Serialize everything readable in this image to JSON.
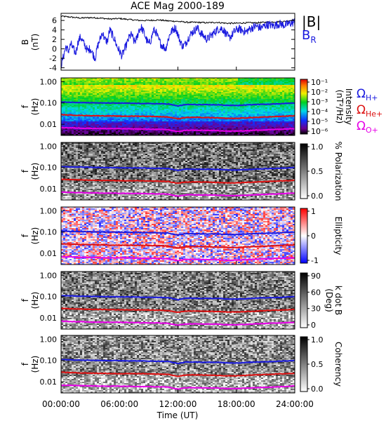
{
  "title": "ACE Mag 2000-189",
  "chart_data": [
    {
      "type": "line",
      "panel": "field",
      "ylabel": "B",
      "yunit": "(nT)",
      "ylim": [
        -4.5,
        7.5
      ],
      "yticks": [
        "6",
        "4",
        "2",
        "0",
        "-2",
        "-4"
      ],
      "ytick_values": [
        6,
        4,
        2,
        0,
        -2,
        -4
      ],
      "series": [
        {
          "name": "|B|",
          "color": "#000000",
          "x_hours": [
            0,
            1,
            2,
            3,
            4,
            5,
            6,
            7,
            8,
            9,
            10,
            11,
            12,
            13,
            14,
            15,
            16,
            17,
            18,
            19,
            20,
            21,
            22,
            23,
            24
          ],
          "values": [
            6.9,
            6.7,
            6.5,
            6.6,
            6.5,
            6.3,
            6.4,
            6.2,
            6.0,
            6.0,
            6.1,
            5.9,
            5.8,
            5.6,
            5.6,
            5.5,
            5.6,
            5.4,
            5.4,
            5.5,
            5.5,
            5.6,
            5.7,
            5.8,
            6.2
          ]
        },
        {
          "name": "B",
          "subscript": "R",
          "color": "#1a1adf",
          "x_hours": [
            0,
            0.25,
            0.5,
            0.75,
            1,
            1.25,
            1.5,
            1.75,
            2,
            2.25,
            2.5,
            2.75,
            3,
            3.25,
            3.5,
            3.75,
            4,
            4.25,
            4.5,
            4.75,
            5,
            5.25,
            5.5,
            5.75,
            6,
            6.25,
            6.5,
            6.75,
            7,
            7.25,
            7.5,
            7.75,
            8,
            8.25,
            8.5,
            8.75,
            9,
            9.25,
            9.5,
            9.75,
            10,
            10.25,
            10.5,
            10.75,
            11,
            11.25,
            11.5,
            11.75,
            12,
            12.25,
            12.5,
            12.75,
            13,
            13.25,
            13.5,
            13.75,
            14,
            14.25,
            14.5,
            14.75,
            15,
            15.25,
            15.5,
            15.75,
            16,
            16.25,
            16.5,
            16.75,
            17,
            17.25,
            17.5,
            17.75,
            18,
            18.25,
            18.5,
            18.75,
            19,
            19.25,
            19.5,
            19.75,
            20,
            20.25,
            20.5,
            20.75,
            21,
            21.25,
            21.5,
            21.75,
            22,
            22.25,
            22.5,
            22.75,
            23,
            23.25,
            23.5,
            23.75,
            24
          ],
          "values": [
            -3.5,
            -1.5,
            0.5,
            -0.5,
            1.0,
            0.0,
            -1.0,
            1.5,
            2.5,
            1.5,
            0.5,
            -0.5,
            0.2,
            -1.0,
            -2.0,
            0.5,
            2.0,
            3.5,
            2.0,
            1.5,
            4.0,
            3.0,
            2.0,
            0.5,
            -0.5,
            -1.5,
            -0.2,
            1.0,
            2.5,
            3.0,
            1.5,
            2.0,
            4.0,
            4.5,
            3.5,
            2.0,
            1.0,
            2.0,
            4.0,
            3.5,
            2.0,
            1.0,
            0.5,
            0.0,
            2.0,
            3.5,
            4.0,
            4.5,
            3.0,
            1.5,
            0.5,
            1.0,
            2.0,
            3.0,
            3.5,
            4.0,
            4.5,
            3.5,
            3.0,
            2.5,
            2.0,
            2.5,
            3.0,
            3.5,
            4.0,
            4.2,
            4.3,
            3.8,
            3.0,
            2.2,
            2.8,
            3.5,
            4.0,
            4.2,
            4.0,
            3.8,
            3.6,
            4.0,
            4.3,
            4.6,
            4.8,
            4.6,
            4.4,
            4.7,
            5.0,
            5.1,
            5.0,
            4.9,
            5.0,
            5.2,
            5.3,
            5.1,
            5.0,
            5.2,
            5.4,
            5.5,
            5.6
          ]
        }
      ]
    },
    {
      "type": "heatmap",
      "panel": "intensity",
      "ylabel": "f",
      "yunit": "(Hz)",
      "colorbar": {
        "label": "Intensity (nT²/Hz)",
        "label_main": "Intensity",
        "label_unit": "(nT²/Hz)",
        "colormap": "rainbow",
        "tick_labels": [
          "10⁻¹",
          "10⁻²",
          "10⁻³",
          "10⁻⁴",
          "10⁻⁵",
          "10⁻⁶"
        ]
      },
      "ion_labels": [
        {
          "symbol": "Ω",
          "subscript": "H+",
          "color": "#1a1adf"
        },
        {
          "symbol": "Ω",
          "subscript": "He+",
          "color": "#dd1111"
        },
        {
          "symbol": "Ω",
          "subscript": "O+",
          "color": "#e600e6"
        }
      ]
    },
    {
      "type": "heatmap",
      "panel": "polarization",
      "ylabel": "f",
      "yunit": "(Hz)",
      "colorbar": {
        "label": "% Polarization",
        "colormap": "gray",
        "tick_labels": [
          "1.0",
          "0.5",
          "0.0"
        ]
      }
    },
    {
      "type": "heatmap",
      "panel": "ellipticity",
      "ylabel": "f",
      "yunit": "(Hz)",
      "colorbar": {
        "label": "Ellipticity",
        "colormap": "blue-white-red",
        "tick_labels": [
          "1",
          "0",
          "-1"
        ]
      }
    },
    {
      "type": "heatmap",
      "panel": "kdotb",
      "ylabel": "f",
      "yunit": "(Hz)",
      "colorbar": {
        "label": "k dot B (Deg)",
        "label_main": "k dot B",
        "label_unit": "(Deg)",
        "colormap": "gray",
        "tick_labels": [
          "90",
          "60",
          "30",
          "0"
        ]
      }
    },
    {
      "type": "heatmap",
      "panel": "coherency",
      "ylabel": "f",
      "yunit": "(Hz)",
      "colorbar": {
        "label": "Coherency",
        "colormap": "gray",
        "tick_labels": [
          "1.0",
          "0.5",
          "0.0"
        ]
      }
    }
  ],
  "freq_axis": {
    "ticks": [
      "1.00",
      "0.10",
      "0.01"
    ],
    "tick_values": [
      1.0,
      0.1,
      0.01
    ],
    "ylim": [
      0.003,
      1.5
    ],
    "scale": "log"
  },
  "gyro_lines": {
    "x_hours": [
      0,
      2,
      4,
      6,
      8,
      10,
      11,
      11.5,
      12,
      12.5,
      13,
      14,
      16,
      17,
      18,
      19,
      20,
      22,
      24
    ],
    "H_plus": [
      0.11,
      0.105,
      0.1,
      0.098,
      0.095,
      0.092,
      0.09,
      0.08,
      0.072,
      0.08,
      0.085,
      0.083,
      0.082,
      0.078,
      0.076,
      0.08,
      0.085,
      0.09,
      0.1
    ],
    "He_plus": [
      0.028,
      0.026,
      0.025,
      0.024,
      0.024,
      0.023,
      0.022,
      0.02,
      0.018,
      0.02,
      0.021,
      0.021,
      0.02,
      0.019,
      0.019,
      0.02,
      0.021,
      0.023,
      0.025
    ],
    "O_plus": [
      0.007,
      0.0066,
      0.0063,
      0.0062,
      0.006,
      0.0058,
      0.0056,
      0.005,
      0.0045,
      0.005,
      0.0053,
      0.0052,
      0.0051,
      0.0048,
      0.0048,
      0.005,
      0.0053,
      0.0057,
      0.0063
    ]
  },
  "time_axis": {
    "xlabel": "Time (UT)",
    "xlim": [
      0,
      24
    ],
    "tick_labels": [
      "00:00:00",
      "06:00:00",
      "12:00:00",
      "18:00:00",
      "24:00:00"
    ],
    "tick_values": [
      0,
      6,
      12,
      18,
      24
    ]
  },
  "colors": {
    "H_plus": "#1a1adf",
    "He_plus": "#dd1111",
    "O_plus": "#e600e6",
    "field_total": "#000000",
    "field_radial": "#1a1adf"
  }
}
